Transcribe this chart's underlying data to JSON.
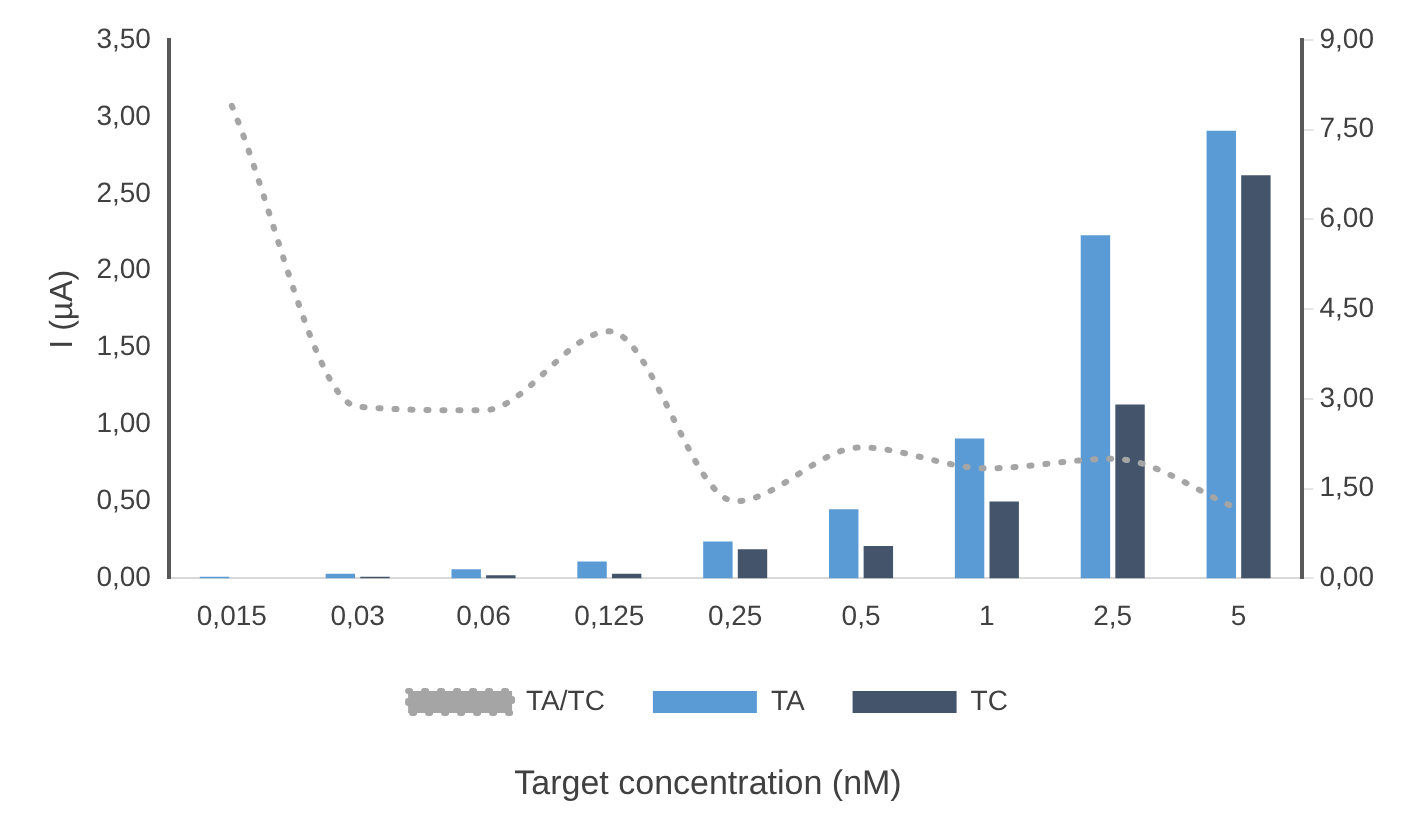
{
  "chart_data": {
    "type": "bar",
    "xlabel": "Target concentration (nM)",
    "ylabel": "I (µA)",
    "categories": [
      "0,015",
      "0,03",
      "0,06",
      "0,125",
      "0,25",
      "0,5",
      "1",
      "2,5",
      "5"
    ],
    "series": [
      {
        "name": "TA",
        "color": "#5b9bd5",
        "values": [
          0.01,
          0.03,
          0.06,
          0.11,
          0.24,
          0.45,
          0.91,
          2.23,
          2.91
        ]
      },
      {
        "name": "TC",
        "color": "#44546a",
        "values": [
          0,
          0.01,
          0.02,
          0.03,
          0.19,
          0.21,
          0.5,
          1.13,
          2.62
        ]
      },
      {
        "name": "TA/TC",
        "type": "line",
        "axis": "y2",
        "color": "#a5a5a5",
        "line_style": "dotted",
        "values": [
          7.9,
          2.87,
          2.81,
          4.13,
          1.29,
          2.19,
          1.84,
          2.0,
          1.16
        ]
      }
    ],
    "ylim": [
      0,
      3.5
    ],
    "yticks": [
      {
        "value": 0,
        "label": "0,00"
      },
      {
        "value": 0.5,
        "label": "0,50"
      },
      {
        "value": 1,
        "label": "1,00"
      },
      {
        "value": 1.5,
        "label": "1,50"
      },
      {
        "value": 2,
        "label": "2,00"
      },
      {
        "value": 2.5,
        "label": "2,50"
      },
      {
        "value": 3,
        "label": "3,00"
      },
      {
        "value": 3.5,
        "label": "3,50"
      }
    ],
    "y2lim": [
      0,
      9
    ],
    "y2ticks": [
      {
        "value": 0,
        "label": "0,00"
      },
      {
        "value": 1.5,
        "label": "1,50"
      },
      {
        "value": 3,
        "label": "3,00"
      },
      {
        "value": 4.5,
        "label": "4,50"
      },
      {
        "value": 6,
        "label": "6,00"
      },
      {
        "value": 7.5,
        "label": "7,50"
      },
      {
        "value": 9,
        "label": "9,00"
      }
    ],
    "grid": false,
    "legend": "bottom"
  }
}
